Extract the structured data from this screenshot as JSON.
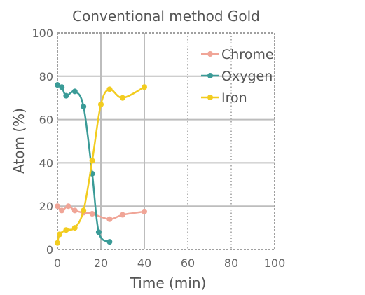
{
  "chart_data": {
    "type": "line",
    "title": "Conventional method Gold",
    "xlabel": "Time (min)",
    "ylabel": "Atom (%)",
    "xlim": [
      0,
      100
    ],
    "ylim": [
      0,
      100
    ],
    "xticks": [
      "0",
      "20",
      "40",
      "60",
      "80",
      "100"
    ],
    "yticks": [
      "0",
      "20",
      "40",
      "60",
      "80",
      "100"
    ],
    "grid": true,
    "legend_position": "top-right",
    "series": [
      {
        "name": "Chrome",
        "color": "#f0a597",
        "x": [
          0,
          2,
          5,
          8,
          12,
          16,
          24,
          30,
          40
        ],
        "y": [
          20,
          18,
          20,
          18,
          17,
          16.5,
          14,
          16,
          17.5
        ]
      },
      {
        "name": "Oxygen",
        "color": "#3a9b97",
        "x": [
          0,
          2,
          4,
          8,
          12,
          16,
          19,
          24
        ],
        "y": [
          76,
          75,
          71,
          73,
          66,
          35,
          8,
          3.5
        ]
      },
      {
        "name": "Iron",
        "color": "#f2cc1f",
        "x": [
          0,
          1,
          4,
          8,
          12,
          16,
          20,
          24,
          30,
          40
        ],
        "y": [
          3,
          7,
          9,
          10,
          18,
          41,
          67,
          74,
          70,
          75
        ]
      }
    ]
  }
}
